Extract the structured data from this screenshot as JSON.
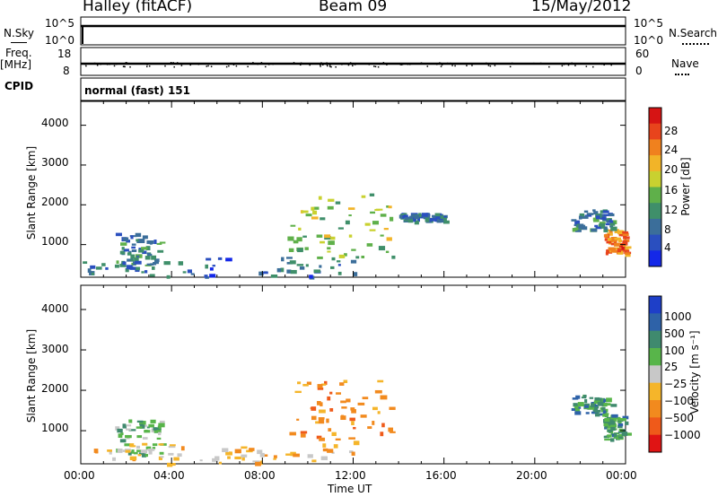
{
  "header": {
    "station": "Halley (fitACF)",
    "beam": "Beam 09",
    "date": "15/May/2012"
  },
  "status_panels": {
    "nsky_label": "N.Sky",
    "nsearch_label": "N.Search",
    "freq_label": "Freq.",
    "freq_unit": "[MHz]",
    "nave_label": "Nave",
    "cpid_label": "CPID",
    "program": "normal (fast) 151",
    "nsky_ticks": [
      "10^5",
      "10^0"
    ],
    "nsearch_ticks": [
      "10^5",
      "10^0"
    ],
    "freq_ticks": [
      18,
      8
    ],
    "nave_ticks": [
      60,
      0
    ]
  },
  "chart_data": [
    {
      "type": "heatmap",
      "panel": "power",
      "xlabel": "",
      "ylabel": "Slant Range [km]",
      "y_ticks": [
        1000,
        2000,
        3000,
        4000
      ],
      "x_ticks": [
        "00:00",
        "04:00",
        "08:00",
        "12:00",
        "16:00",
        "20:00",
        "00:00"
      ],
      "xlim_hours": [
        0,
        24
      ],
      "ylim_km": [
        180,
        4600
      ],
      "colorbar": {
        "label": "Power [dB]",
        "ticks": [
          4,
          8,
          12,
          16,
          20,
          24,
          28
        ],
        "colors": [
          "#1428e8",
          "#2a4fbf",
          "#3b6e9a",
          "#3f8f6a",
          "#5fb04a",
          "#c9d130",
          "#f2b428",
          "#f0811e",
          "#e8441c",
          "#d61414"
        ]
      },
      "echo_regions": [
        {
          "t": [
            9.1,
            13.7
          ],
          "r": [
            700,
            2300
          ],
          "value_db": 14
        },
        {
          "t": [
            23.0,
            24.0
          ],
          "r": [
            800,
            1400
          ],
          "value_db": 22
        },
        {
          "t": [
            21.6,
            23.4
          ],
          "r": [
            1400,
            1900
          ],
          "value_db": 8
        },
        {
          "t": [
            1.5,
            3.5
          ],
          "r": [
            400,
            1300
          ],
          "value_db": 8
        },
        {
          "t": [
            0.0,
            12.0
          ],
          "r": [
            200,
            700
          ],
          "value_db": 6
        },
        {
          "t": [
            14.0,
            16.0
          ],
          "r": [
            1600,
            1800
          ],
          "value_db": 6
        }
      ]
    },
    {
      "type": "heatmap",
      "panel": "velocity",
      "xlabel": "Time UT",
      "ylabel": "Slant Range [km]",
      "y_ticks": [
        1000,
        2000,
        3000,
        4000
      ],
      "x_ticks": [
        "00:00",
        "04:00",
        "08:00",
        "12:00",
        "16:00",
        "20:00",
        "00:00"
      ],
      "xlim_hours": [
        0,
        24
      ],
      "ylim_km": [
        180,
        4600
      ],
      "colorbar": {
        "label": "Velocity [m s⁻¹]",
        "ticks": [
          "1000",
          "500",
          "100",
          "25",
          "−25",
          "−100",
          "−500",
          "−1000"
        ],
        "colors": [
          "#1e3fc8",
          "#2e62a8",
          "#3f8a6e",
          "#58b54a",
          "#c8c8c8",
          "#f5b52a",
          "#f28a1e",
          "#ef5a1a",
          "#e01414"
        ]
      },
      "echo_regions": [
        {
          "t": [
            9.1,
            13.7
          ],
          "r": [
            700,
            2300
          ],
          "value": -200
        },
        {
          "t": [
            23.0,
            24.0
          ],
          "r": [
            800,
            1400
          ],
          "value": 200
        },
        {
          "t": [
            21.6,
            23.4
          ],
          "r": [
            1400,
            1900
          ],
          "value": 150
        },
        {
          "t": [
            1.5,
            3.5
          ],
          "r": [
            400,
            1300
          ],
          "value": 100
        },
        {
          "t": [
            0.0,
            12.0
          ],
          "r": [
            200,
            700
          ],
          "value": -50
        }
      ]
    }
  ]
}
